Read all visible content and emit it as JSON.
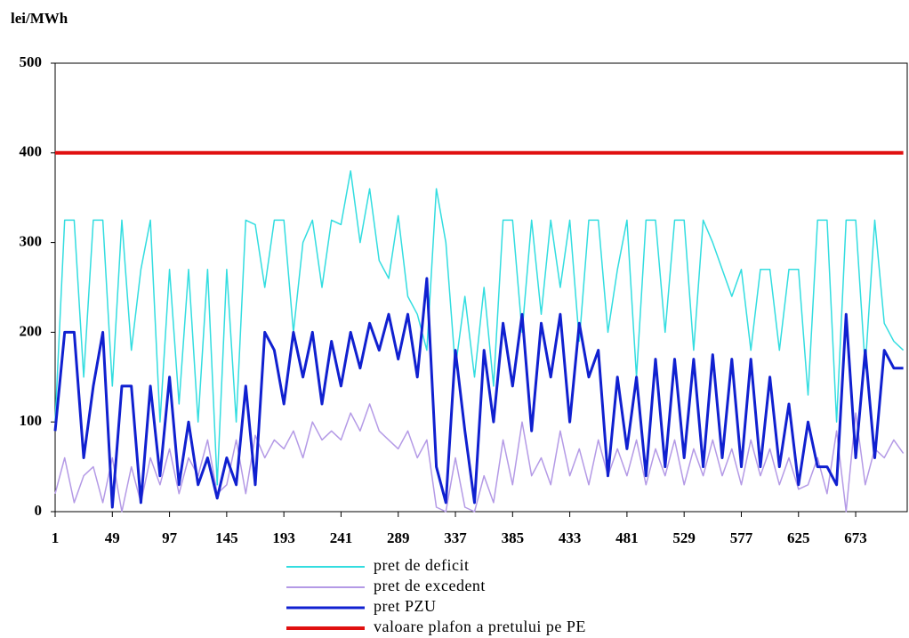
{
  "chart_data": {
    "type": "line",
    "y_label": "lei/MWh",
    "xlim": [
      1,
      720
    ],
    "ylim": [
      0,
      500
    ],
    "yticks": [
      0,
      100,
      200,
      300,
      400,
      500
    ],
    "xticks": [
      1,
      49,
      97,
      145,
      193,
      241,
      289,
      337,
      385,
      433,
      481,
      529,
      577,
      625,
      673
    ],
    "x": [
      1,
      9,
      17,
      25,
      33,
      41,
      49,
      57,
      65,
      73,
      81,
      89,
      97,
      105,
      113,
      121,
      129,
      137,
      145,
      153,
      161,
      169,
      177,
      185,
      193,
      201,
      209,
      217,
      225,
      233,
      241,
      249,
      257,
      265,
      273,
      281,
      289,
      297,
      305,
      313,
      321,
      329,
      337,
      345,
      353,
      361,
      369,
      377,
      385,
      393,
      401,
      409,
      417,
      425,
      433,
      441,
      449,
      457,
      465,
      473,
      481,
      489,
      497,
      505,
      513,
      521,
      529,
      537,
      545,
      553,
      561,
      569,
      577,
      585,
      593,
      601,
      609,
      617,
      625,
      633,
      641,
      649,
      657,
      665,
      673,
      681,
      689,
      697,
      705,
      713
    ],
    "series": [
      {
        "name": "pret de deficit",
        "color": "#33dde0",
        "width": 1.5,
        "values": [
          100,
          325,
          325,
          150,
          325,
          325,
          140,
          325,
          180,
          270,
          325,
          100,
          270,
          120,
          270,
          100,
          270,
          30,
          270,
          100,
          325,
          320,
          250,
          325,
          325,
          200,
          300,
          325,
          250,
          325,
          320,
          380,
          300,
          360,
          280,
          260,
          330,
          240,
          220,
          180,
          360,
          300,
          160,
          240,
          150,
          250,
          140,
          325,
          325,
          200,
          325,
          220,
          325,
          250,
          325,
          190,
          325,
          325,
          200,
          270,
          325,
          150,
          325,
          325,
          200,
          325,
          325,
          180,
          325,
          300,
          270,
          240,
          270,
          180,
          270,
          270,
          180,
          270,
          270,
          130,
          325,
          325,
          100,
          325,
          325,
          160,
          325,
          210,
          190,
          180
        ]
      },
      {
        "name": "pret de excedent",
        "color": "#b49ae6",
        "width": 1.5,
        "values": [
          20,
          60,
          10,
          40,
          50,
          10,
          60,
          0,
          50,
          10,
          60,
          30,
          70,
          20,
          60,
          40,
          80,
          20,
          30,
          80,
          20,
          85,
          60,
          80,
          70,
          90,
          60,
          100,
          80,
          90,
          80,
          110,
          90,
          120,
          90,
          80,
          70,
          90,
          60,
          80,
          5,
          0,
          60,
          5,
          0,
          40,
          10,
          80,
          30,
          100,
          40,
          60,
          30,
          90,
          40,
          70,
          30,
          80,
          40,
          70,
          40,
          80,
          30,
          70,
          40,
          80,
          30,
          70,
          40,
          80,
          40,
          70,
          30,
          80,
          40,
          70,
          30,
          60,
          25,
          30,
          60,
          20,
          90,
          0,
          110,
          30,
          70,
          60,
          80,
          65
        ]
      },
      {
        "name": "pret PZU",
        "color": "#1020d0",
        "width": 3,
        "values": [
          90,
          200,
          200,
          60,
          140,
          200,
          5,
          140,
          140,
          10,
          140,
          40,
          150,
          30,
          100,
          30,
          60,
          15,
          60,
          30,
          140,
          30,
          200,
          180,
          120,
          200,
          150,
          200,
          120,
          190,
          140,
          200,
          160,
          210,
          180,
          220,
          170,
          220,
          150,
          260,
          50,
          10,
          180,
          90,
          10,
          180,
          100,
          210,
          140,
          220,
          90,
          210,
          150,
          220,
          100,
          210,
          150,
          180,
          40,
          150,
          70,
          150,
          40,
          170,
          50,
          170,
          60,
          170,
          50,
          175,
          60,
          170,
          50,
          170,
          50,
          150,
          50,
          120,
          30,
          100,
          50,
          50,
          30,
          220,
          60,
          180,
          60,
          180,
          160,
          160
        ]
      },
      {
        "name": "valoare plafon a pretului pe PE",
        "color": "#e01010",
        "width": 4,
        "values": [
          400,
          400,
          400,
          400,
          400,
          400,
          400,
          400,
          400,
          400,
          400,
          400,
          400,
          400,
          400,
          400,
          400,
          400,
          400,
          400,
          400,
          400,
          400,
          400,
          400,
          400,
          400,
          400,
          400,
          400,
          400,
          400,
          400,
          400,
          400,
          400,
          400,
          400,
          400,
          400,
          400,
          400,
          400,
          400,
          400,
          400,
          400,
          400,
          400,
          400,
          400,
          400,
          400,
          400,
          400,
          400,
          400,
          400,
          400,
          400,
          400,
          400,
          400,
          400,
          400,
          400,
          400,
          400,
          400,
          400,
          400,
          400,
          400,
          400,
          400,
          400,
          400,
          400,
          400,
          400,
          400,
          400,
          400,
          400,
          400,
          400,
          400,
          400,
          400,
          400
        ]
      }
    ]
  }
}
